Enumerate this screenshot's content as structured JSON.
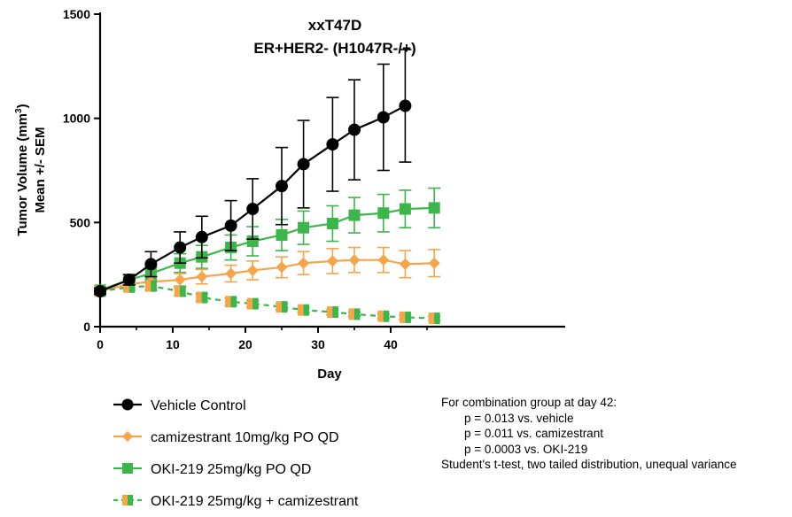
{
  "chart_data": {
    "type": "line",
    "title": [
      "xxT47D",
      "ER+HER2- (H1047R-/+)"
    ],
    "xlabel": "Day",
    "ylabel": [
      "Tumor Volume (mm",
      "3",
      ")",
      "Mean +/- SEM"
    ],
    "xlim": [
      0,
      46
    ],
    "ylim": [
      0,
      1500
    ],
    "xticks": [
      "0",
      "10",
      "20",
      "30",
      "40"
    ],
    "xtick_values": [
      0,
      10,
      20,
      30,
      40
    ],
    "yticks": [
      "0",
      "500",
      "1000",
      "1500"
    ],
    "ytick_values": [
      0,
      500,
      1000,
      1500
    ],
    "legend_position": "bottom-left",
    "series": [
      {
        "name": "Vehicle Control",
        "color": "#000000",
        "marker": "circle",
        "line": "solid",
        "x": [
          0,
          4,
          7,
          11,
          14,
          18,
          21,
          25,
          28,
          32,
          35,
          39,
          42
        ],
        "y": [
          170,
          225,
          300,
          380,
          430,
          485,
          565,
          675,
          780,
          875,
          945,
          1005,
          1060
        ],
        "err": [
          15,
          25,
          60,
          75,
          100,
          120,
          145,
          185,
          210,
          225,
          240,
          255,
          270
        ]
      },
      {
        "name": "camizestrant 10mg/kg PO QD",
        "color": "#f5a54a",
        "marker": "diamond",
        "line": "solid",
        "x": [
          0,
          4,
          7,
          11,
          14,
          18,
          21,
          25,
          28,
          32,
          35,
          39,
          42,
          46
        ],
        "y": [
          170,
          205,
          215,
          225,
          240,
          255,
          270,
          285,
          305,
          315,
          320,
          320,
          300,
          305
        ],
        "err": [
          15,
          20,
          25,
          30,
          35,
          40,
          45,
          50,
          55,
          60,
          60,
          60,
          65,
          65
        ]
      },
      {
        "name": "OKI-219 25mg/kg PO QD",
        "color": "#3cb54a",
        "marker": "square",
        "line": "solid",
        "x": [
          0,
          4,
          7,
          11,
          14,
          18,
          21,
          25,
          28,
          32,
          35,
          39,
          42,
          46
        ],
        "y": [
          175,
          225,
          255,
          305,
          335,
          380,
          410,
          440,
          475,
          495,
          535,
          545,
          565,
          570
        ],
        "err": [
          15,
          25,
          30,
          45,
          55,
          60,
          70,
          75,
          80,
          85,
          85,
          90,
          90,
          95
        ]
      },
      {
        "name": "OKI-219 25mg/kg + camizestrant",
        "color": "#3cb54a",
        "color2": "#f5a54a",
        "marker": "half-square",
        "line": "dashed",
        "x": [
          0,
          4,
          7,
          11,
          14,
          18,
          21,
          25,
          28,
          32,
          35,
          39,
          42,
          46
        ],
        "y": [
          170,
          190,
          195,
          170,
          140,
          120,
          110,
          95,
          80,
          70,
          60,
          50,
          45,
          40
        ],
        "err": [
          15,
          15,
          20,
          20,
          18,
          18,
          15,
          15,
          12,
          12,
          10,
          10,
          10,
          10
        ]
      }
    ]
  },
  "notes": [
    "For combination group at day 42:",
    "p = 0.013 vs. vehicle",
    "p = 0.011 vs. camizestrant",
    "p = 0.0003 vs. OKI-219",
    "Student's t-test, two tailed distribution, unequal variance"
  ]
}
